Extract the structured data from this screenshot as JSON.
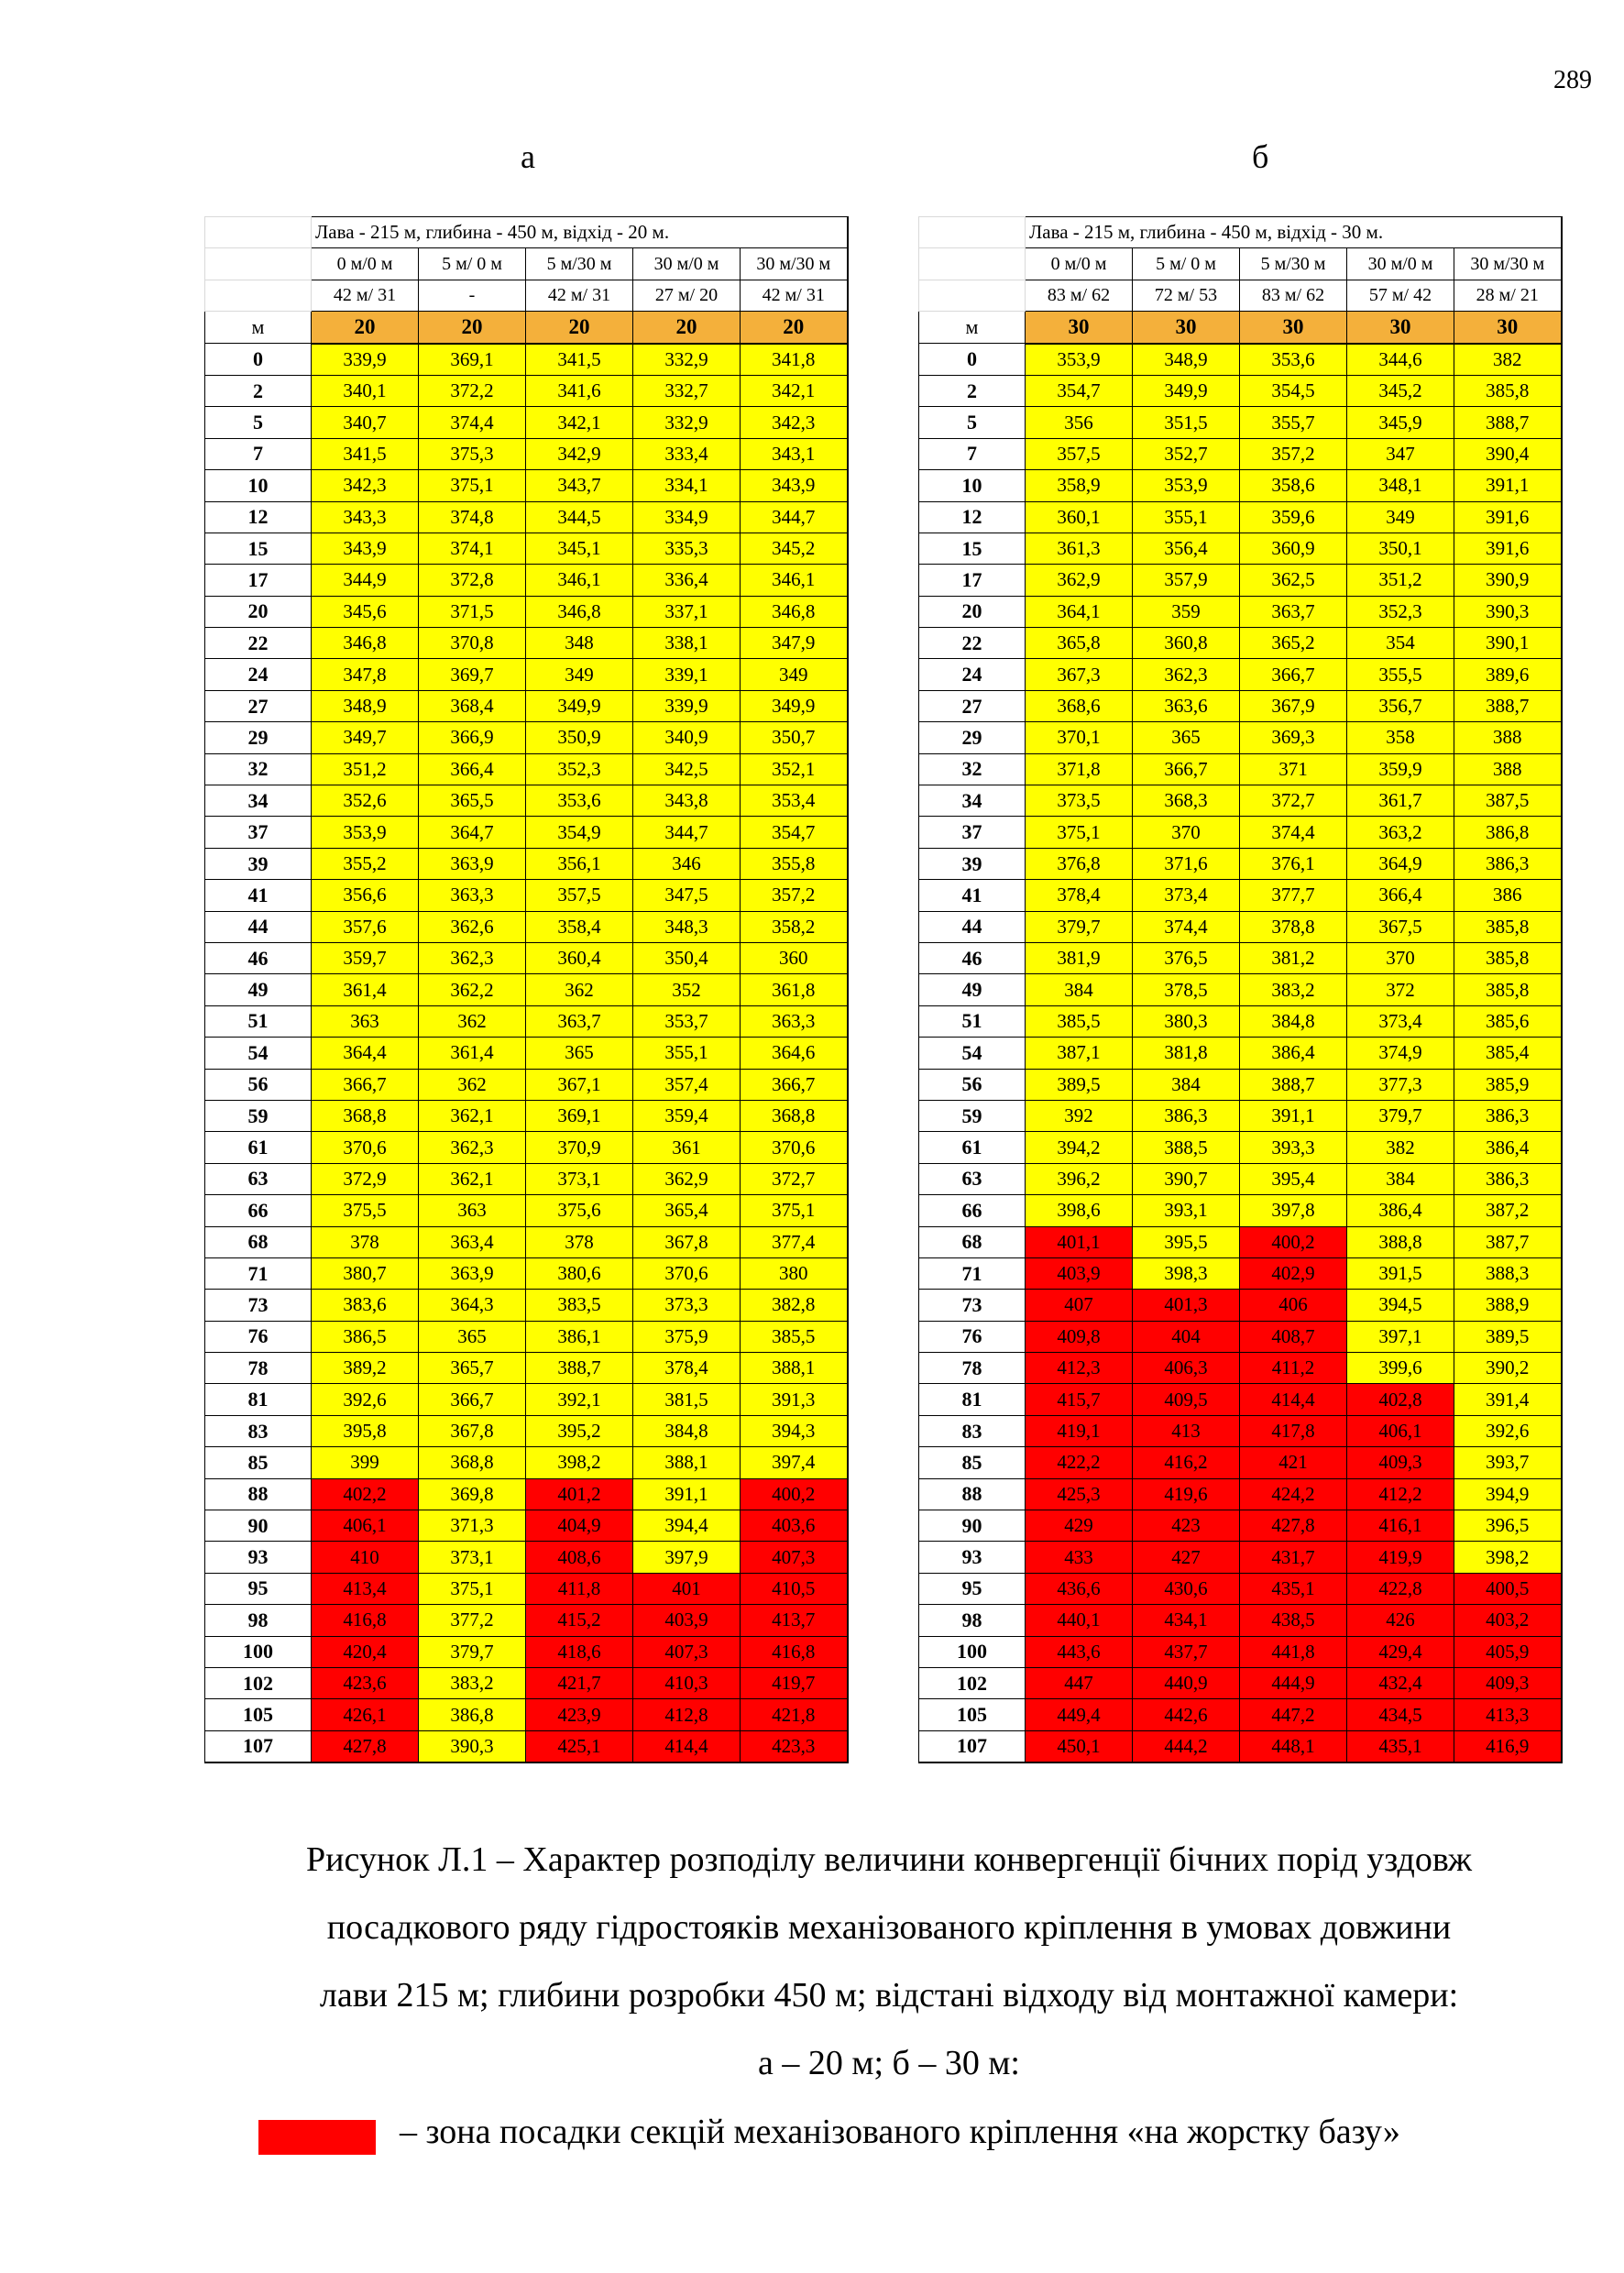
{
  "page_number": "289",
  "panels": [
    {
      "letter": "а",
      "title": "Лава - 215 м, глибина - 450 м, відхід - 20 м.",
      "columns": [
        "0 м/0 м",
        "5 м/ 0 м",
        "5 м/30 м",
        "30 м/0 м",
        "30 м/30 м"
      ],
      "subvalues": [
        "42 м/ 31",
        "-",
        "42 м/ 31",
        "27 м/ 20",
        "42 м/ 31"
      ],
      "unit_label": "м",
      "header_values": [
        "20",
        "20",
        "20",
        "20",
        "20"
      ],
      "rows": [
        [
          "0",
          "339,9",
          "369,1",
          "341,5",
          "332,9",
          "341,8"
        ],
        [
          "2",
          "340,1",
          "372,2",
          "341,6",
          "332,7",
          "342,1"
        ],
        [
          "5",
          "340,7",
          "374,4",
          "342,1",
          "332,9",
          "342,3"
        ],
        [
          "7",
          "341,5",
          "375,3",
          "342,9",
          "333,4",
          "343,1"
        ],
        [
          "10",
          "342,3",
          "375,1",
          "343,7",
          "334,1",
          "343,9"
        ],
        [
          "12",
          "343,3",
          "374,8",
          "344,5",
          "334,9",
          "344,7"
        ],
        [
          "15",
          "343,9",
          "374,1",
          "345,1",
          "335,3",
          "345,2"
        ],
        [
          "17",
          "344,9",
          "372,8",
          "346,1",
          "336,4",
          "346,1"
        ],
        [
          "20",
          "345,6",
          "371,5",
          "346,8",
          "337,1",
          "346,8"
        ],
        [
          "22",
          "346,8",
          "370,8",
          "348",
          "338,1",
          "347,9"
        ],
        [
          "24",
          "347,8",
          "369,7",
          "349",
          "339,1",
          "349"
        ],
        [
          "27",
          "348,9",
          "368,4",
          "349,9",
          "339,9",
          "349,9"
        ],
        [
          "29",
          "349,7",
          "366,9",
          "350,9",
          "340,9",
          "350,7"
        ],
        [
          "32",
          "351,2",
          "366,4",
          "352,3",
          "342,5",
          "352,1"
        ],
        [
          "34",
          "352,6",
          "365,5",
          "353,6",
          "343,8",
          "353,4"
        ],
        [
          "37",
          "353,9",
          "364,7",
          "354,9",
          "344,7",
          "354,7"
        ],
        [
          "39",
          "355,2",
          "363,9",
          "356,1",
          "346",
          "355,8"
        ],
        [
          "41",
          "356,6",
          "363,3",
          "357,5",
          "347,5",
          "357,2"
        ],
        [
          "44",
          "357,6",
          "362,6",
          "358,4",
          "348,3",
          "358,2"
        ],
        [
          "46",
          "359,7",
          "362,3",
          "360,4",
          "350,4",
          "360"
        ],
        [
          "49",
          "361,4",
          "362,2",
          "362",
          "352",
          "361,8"
        ],
        [
          "51",
          "363",
          "362",
          "363,7",
          "353,7",
          "363,3"
        ],
        [
          "54",
          "364,4",
          "361,4",
          "365",
          "355,1",
          "364,6"
        ],
        [
          "56",
          "366,7",
          "362",
          "367,1",
          "357,4",
          "366,7"
        ],
        [
          "59",
          "368,8",
          "362,1",
          "369,1",
          "359,4",
          "368,8"
        ],
        [
          "61",
          "370,6",
          "362,3",
          "370,9",
          "361",
          "370,6"
        ],
        [
          "63",
          "372,9",
          "362,1",
          "373,1",
          "362,9",
          "372,7"
        ],
        [
          "66",
          "375,5",
          "363",
          "375,6",
          "365,4",
          "375,1"
        ],
        [
          "68",
          "378",
          "363,4",
          "378",
          "367,8",
          "377,4"
        ],
        [
          "71",
          "380,7",
          "363,9",
          "380,6",
          "370,6",
          "380"
        ],
        [
          "73",
          "383,6",
          "364,3",
          "383,5",
          "373,3",
          "382,8"
        ],
        [
          "76",
          "386,5",
          "365",
          "386,1",
          "375,9",
          "385,5"
        ],
        [
          "78",
          "389,2",
          "365,7",
          "388,7",
          "378,4",
          "388,1"
        ],
        [
          "81",
          "392,6",
          "366,7",
          "392,1",
          "381,5",
          "391,3"
        ],
        [
          "83",
          "395,8",
          "367,8",
          "395,2",
          "384,8",
          "394,3"
        ],
        [
          "85",
          "399",
          "368,8",
          "398,2",
          "388,1",
          "397,4"
        ],
        [
          "88",
          "402,2",
          "369,8",
          "401,2",
          "391,1",
          "400,2"
        ],
        [
          "90",
          "406,1",
          "371,3",
          "404,9",
          "394,4",
          "403,6"
        ],
        [
          "93",
          "410",
          "373,1",
          "408,6",
          "397,9",
          "407,3"
        ],
        [
          "95",
          "413,4",
          "375,1",
          "411,8",
          "401",
          "410,5"
        ],
        [
          "98",
          "416,8",
          "377,2",
          "415,2",
          "403,9",
          "413,7"
        ],
        [
          "100",
          "420,4",
          "379,7",
          "418,6",
          "407,3",
          "416,8"
        ],
        [
          "102",
          "423,6",
          "383,2",
          "421,7",
          "410,3",
          "419,7"
        ],
        [
          "105",
          "426,1",
          "386,8",
          "423,9",
          "412,8",
          "421,8"
        ],
        [
          "107",
          "427,8",
          "390,3",
          "425,1",
          "414,4",
          "423,3"
        ]
      ],
      "red_cells": [
        [
          36,
          1
        ],
        [
          36,
          3
        ],
        [
          36,
          5
        ],
        [
          37,
          1
        ],
        [
          37,
          3
        ],
        [
          37,
          5
        ],
        [
          38,
          1
        ],
        [
          38,
          3
        ],
        [
          38,
          5
        ],
        [
          39,
          1
        ],
        [
          39,
          3
        ],
        [
          39,
          4
        ],
        [
          39,
          5
        ],
        [
          40,
          1
        ],
        [
          40,
          3
        ],
        [
          40,
          4
        ],
        [
          40,
          5
        ],
        [
          41,
          1
        ],
        [
          41,
          3
        ],
        [
          41,
          4
        ],
        [
          41,
          5
        ],
        [
          42,
          1
        ],
        [
          42,
          3
        ],
        [
          42,
          4
        ],
        [
          42,
          5
        ],
        [
          43,
          1
        ],
        [
          43,
          3
        ],
        [
          43,
          4
        ],
        [
          43,
          5
        ],
        [
          44,
          1
        ],
        [
          44,
          3
        ],
        [
          44,
          4
        ],
        [
          44,
          5
        ]
      ]
    },
    {
      "letter": "б",
      "title": "Лава - 215 м, глибина - 450 м, відхід - 30 м.",
      "columns": [
        "0 м/0 м",
        "5 м/ 0 м",
        "5 м/30 м",
        "30 м/0 м",
        "30 м/30 м"
      ],
      "subvalues": [
        "83 м/ 62",
        "72 м/ 53",
        "83 м/ 62",
        "57 м/ 42",
        "28 м/ 21"
      ],
      "unit_label": "м",
      "header_values": [
        "30",
        "30",
        "30",
        "30",
        "30"
      ],
      "rows": [
        [
          "0",
          "353,9",
          "348,9",
          "353,6",
          "344,6",
          "382"
        ],
        [
          "2",
          "354,7",
          "349,9",
          "354,5",
          "345,2",
          "385,8"
        ],
        [
          "5",
          "356",
          "351,5",
          "355,7",
          "345,9",
          "388,7"
        ],
        [
          "7",
          "357,5",
          "352,7",
          "357,2",
          "347",
          "390,4"
        ],
        [
          "10",
          "358,9",
          "353,9",
          "358,6",
          "348,1",
          "391,1"
        ],
        [
          "12",
          "360,1",
          "355,1",
          "359,6",
          "349",
          "391,6"
        ],
        [
          "15",
          "361,3",
          "356,4",
          "360,9",
          "350,1",
          "391,6"
        ],
        [
          "17",
          "362,9",
          "357,9",
          "362,5",
          "351,2",
          "390,9"
        ],
        [
          "20",
          "364,1",
          "359",
          "363,7",
          "352,3",
          "390,3"
        ],
        [
          "22",
          "365,8",
          "360,8",
          "365,2",
          "354",
          "390,1"
        ],
        [
          "24",
          "367,3",
          "362,3",
          "366,7",
          "355,5",
          "389,6"
        ],
        [
          "27",
          "368,6",
          "363,6",
          "367,9",
          "356,7",
          "388,7"
        ],
        [
          "29",
          "370,1",
          "365",
          "369,3",
          "358",
          "388"
        ],
        [
          "32",
          "371,8",
          "366,7",
          "371",
          "359,9",
          "388"
        ],
        [
          "34",
          "373,5",
          "368,3",
          "372,7",
          "361,7",
          "387,5"
        ],
        [
          "37",
          "375,1",
          "370",
          "374,4",
          "363,2",
          "386,8"
        ],
        [
          "39",
          "376,8",
          "371,6",
          "376,1",
          "364,9",
          "386,3"
        ],
        [
          "41",
          "378,4",
          "373,4",
          "377,7",
          "366,4",
          "386"
        ],
        [
          "44",
          "379,7",
          "374,4",
          "378,8",
          "367,5",
          "385,8"
        ],
        [
          "46",
          "381,9",
          "376,5",
          "381,2",
          "370",
          "385,8"
        ],
        [
          "49",
          "384",
          "378,5",
          "383,2",
          "372",
          "385,8"
        ],
        [
          "51",
          "385,5",
          "380,3",
          "384,8",
          "373,4",
          "385,6"
        ],
        [
          "54",
          "387,1",
          "381,8",
          "386,4",
          "374,9",
          "385,4"
        ],
        [
          "56",
          "389,5",
          "384",
          "388,7",
          "377,3",
          "385,9"
        ],
        [
          "59",
          "392",
          "386,3",
          "391,1",
          "379,7",
          "386,3"
        ],
        [
          "61",
          "394,2",
          "388,5",
          "393,3",
          "382",
          "386,4"
        ],
        [
          "63",
          "396,2",
          "390,7",
          "395,4",
          "384",
          "386,3"
        ],
        [
          "66",
          "398,6",
          "393,1",
          "397,8",
          "386,4",
          "387,2"
        ],
        [
          "68",
          "401,1",
          "395,5",
          "400,2",
          "388,8",
          "387,7"
        ],
        [
          "71",
          "403,9",
          "398,3",
          "402,9",
          "391,5",
          "388,3"
        ],
        [
          "73",
          "407",
          "401,3",
          "406",
          "394,5",
          "388,9"
        ],
        [
          "76",
          "409,8",
          "404",
          "408,7",
          "397,1",
          "389,5"
        ],
        [
          "78",
          "412,3",
          "406,3",
          "411,2",
          "399,6",
          "390,2"
        ],
        [
          "81",
          "415,7",
          "409,5",
          "414,4",
          "402,8",
          "391,4"
        ],
        [
          "83",
          "419,1",
          "413",
          "417,8",
          "406,1",
          "392,6"
        ],
        [
          "85",
          "422,2",
          "416,2",
          "421",
          "409,3",
          "393,7"
        ],
        [
          "88",
          "425,3",
          "419,6",
          "424,2",
          "412,2",
          "394,9"
        ],
        [
          "90",
          "429",
          "423",
          "427,8",
          "416,1",
          "396,5"
        ],
        [
          "93",
          "433",
          "427",
          "431,7",
          "419,9",
          "398,2"
        ],
        [
          "95",
          "436,6",
          "430,6",
          "435,1",
          "422,8",
          "400,5"
        ],
        [
          "98",
          "440,1",
          "434,1",
          "438,5",
          "426",
          "403,2"
        ],
        [
          "100",
          "443,6",
          "437,7",
          "441,8",
          "429,4",
          "405,9"
        ],
        [
          "102",
          "447",
          "440,9",
          "444,9",
          "432,4",
          "409,3"
        ],
        [
          "105",
          "449,4",
          "442,6",
          "447,2",
          "434,5",
          "413,3"
        ],
        [
          "107",
          "450,1",
          "444,2",
          "448,1",
          "435,1",
          "416,9"
        ]
      ],
      "red_cells": [
        [
          28,
          1
        ],
        [
          28,
          3
        ],
        [
          29,
          1
        ],
        [
          29,
          3
        ],
        [
          30,
          1
        ],
        [
          30,
          2
        ],
        [
          30,
          3
        ],
        [
          31,
          1
        ],
        [
          31,
          2
        ],
        [
          31,
          3
        ],
        [
          32,
          1
        ],
        [
          32,
          2
        ],
        [
          32,
          3
        ],
        [
          33,
          1
        ],
        [
          33,
          2
        ],
        [
          33,
          3
        ],
        [
          33,
          4
        ],
        [
          34,
          1
        ],
        [
          34,
          2
        ],
        [
          34,
          3
        ],
        [
          34,
          4
        ],
        [
          35,
          1
        ],
        [
          35,
          2
        ],
        [
          35,
          3
        ],
        [
          35,
          4
        ],
        [
          36,
          1
        ],
        [
          36,
          2
        ],
        [
          36,
          3
        ],
        [
          36,
          4
        ],
        [
          37,
          1
        ],
        [
          37,
          2
        ],
        [
          37,
          3
        ],
        [
          37,
          4
        ],
        [
          38,
          1
        ],
        [
          38,
          2
        ],
        [
          38,
          3
        ],
        [
          38,
          4
        ],
        [
          39,
          1
        ],
        [
          39,
          2
        ],
        [
          39,
          3
        ],
        [
          39,
          4
        ],
        [
          39,
          5
        ],
        [
          40,
          1
        ],
        [
          40,
          2
        ],
        [
          40,
          3
        ],
        [
          40,
          4
        ],
        [
          40,
          5
        ],
        [
          41,
          1
        ],
        [
          41,
          2
        ],
        [
          41,
          3
        ],
        [
          41,
          4
        ],
        [
          41,
          5
        ],
        [
          42,
          1
        ],
        [
          42,
          2
        ],
        [
          42,
          3
        ],
        [
          42,
          4
        ],
        [
          42,
          5
        ],
        [
          43,
          1
        ],
        [
          43,
          2
        ],
        [
          43,
          3
        ],
        [
          43,
          4
        ],
        [
          43,
          5
        ],
        [
          44,
          1
        ],
        [
          44,
          2
        ],
        [
          44,
          3
        ],
        [
          44,
          4
        ],
        [
          44,
          5
        ]
      ]
    }
  ],
  "caption": {
    "lines": [
      "Рисунок  Л.1 – Характер розподілу величини конвергенції бічних порід уздовж",
      "посадкового ряду гідростояків механізованого кріплення в умовах довжини",
      "лави 215 м; глибини розробки 450 м; відстані  відходу від монтажної камери:",
      "а – 20 м; б – 30 м:"
    ]
  },
  "legend": {
    "color": "#ff0000",
    "text": "– зона посадки секцій механізованого кріплення «на жорстку базу»"
  }
}
